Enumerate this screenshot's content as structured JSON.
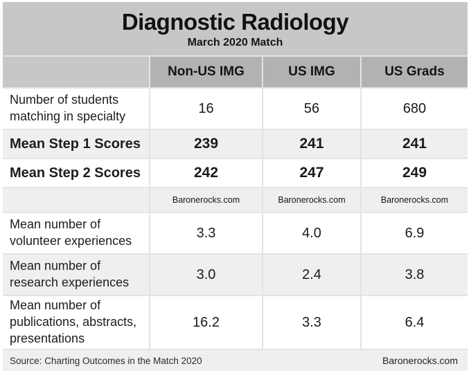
{
  "chart_data": {
    "type": "table",
    "title": "Diagnostic Radiology",
    "subtitle": "March 2020 Match",
    "columns": [
      "Non-US IMG",
      "US IMG",
      "US Grads"
    ],
    "rows": [
      {
        "label": "Number of students matching in specialty",
        "values": [
          "16",
          "56",
          "680"
        ]
      },
      {
        "label": "Mean Step 1 Scores",
        "values": [
          "239",
          "241",
          "241"
        ]
      },
      {
        "label": "Mean Step 2 Scores",
        "values": [
          "242",
          "247",
          "249"
        ]
      },
      {
        "label": "",
        "values": [
          "Baronerocks.com",
          "Baronerocks.com",
          "Baronerocks.com"
        ]
      },
      {
        "label": "Mean number of volunteer experiences",
        "values": [
          "3.3",
          "4.0",
          "6.9"
        ]
      },
      {
        "label": "Mean number of research experiences",
        "values": [
          "3.0",
          "2.4",
          "3.8"
        ]
      },
      {
        "label": "Mean number of publications, abstracts, presentations",
        "values": [
          "16.2",
          "3.3",
          "6.4"
        ]
      }
    ],
    "footer": {
      "source": "Source: Charting Outcomes in the Match 2020",
      "branding": "Baronerocks.com"
    }
  },
  "colors": {
    "title_band": "#c6c8c7",
    "header_cell": "#b1b3b2",
    "row_light": "#efefef",
    "row_white": "#ffffff",
    "separator": "#e3e3e3",
    "text": "#1a1a1a"
  }
}
